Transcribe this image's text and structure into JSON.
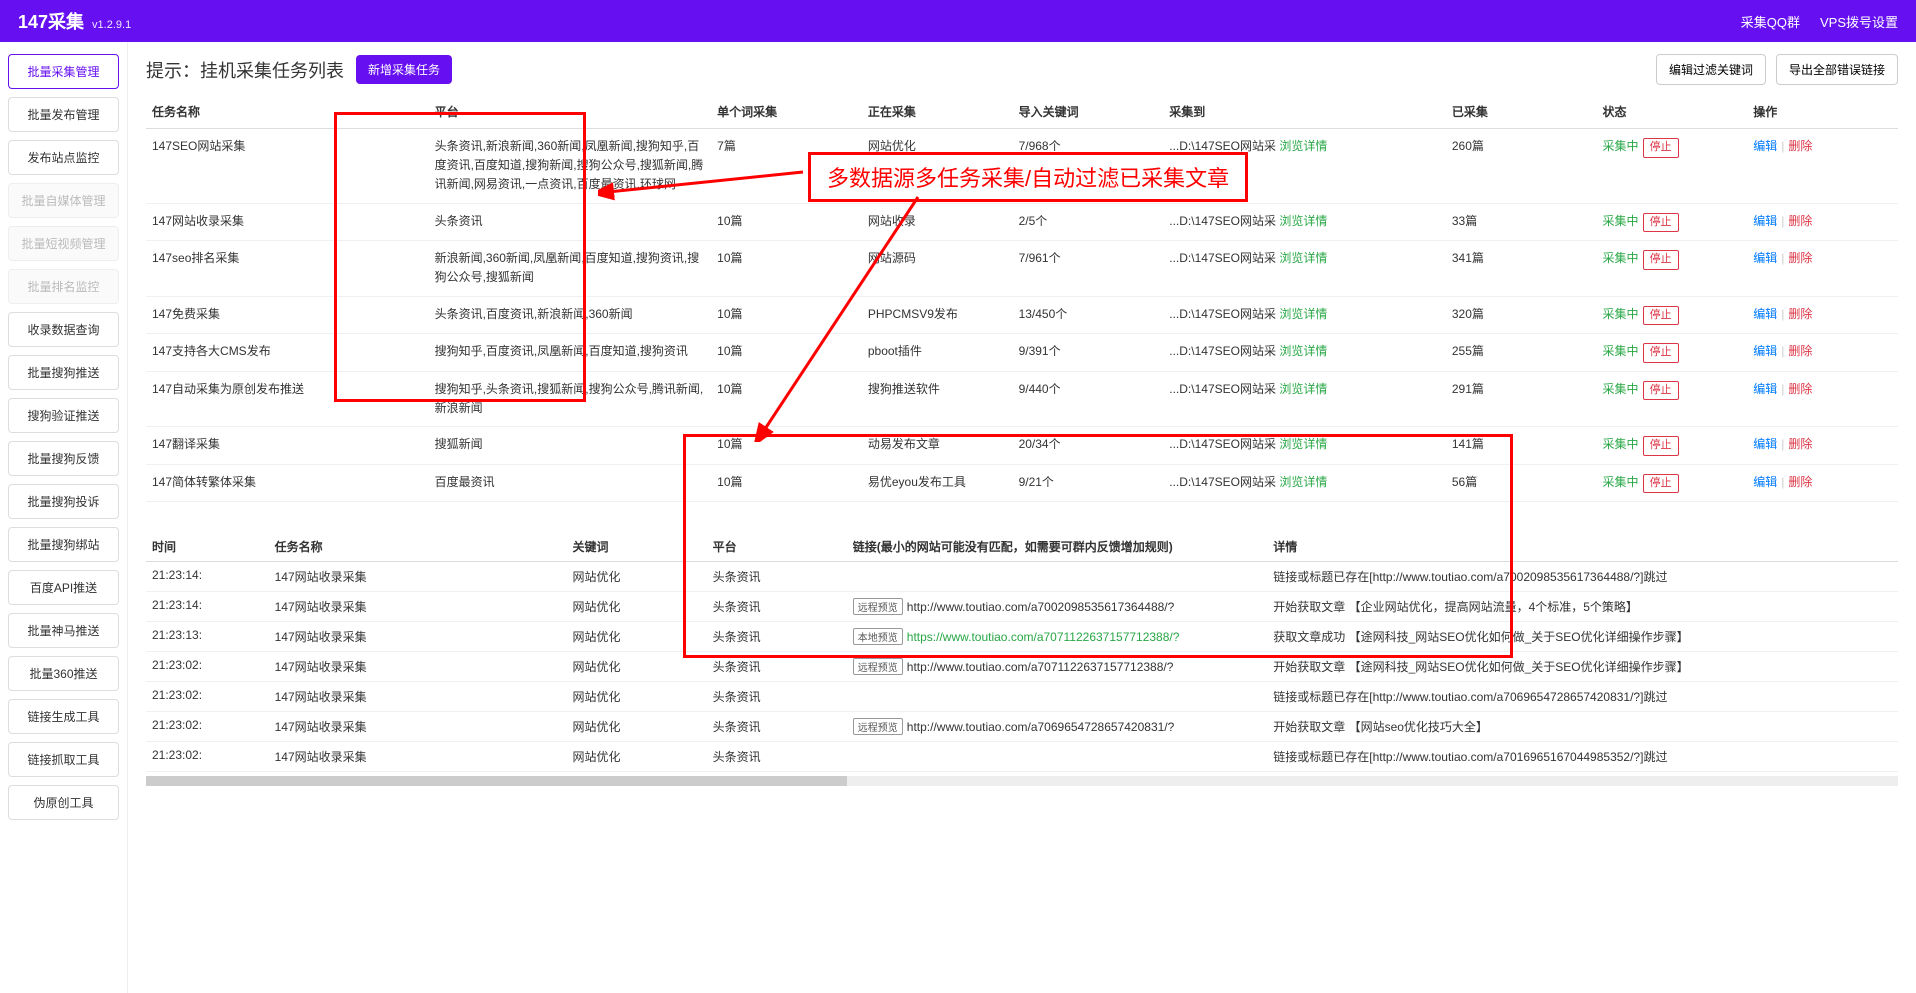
{
  "header": {
    "title": "147采集",
    "version": "v1.2.9.1",
    "links": [
      "采集QQ群",
      "VPS拨号设置"
    ]
  },
  "sidebar": {
    "items": [
      {
        "label": "批量采集管理",
        "state": "active"
      },
      {
        "label": "批量发布管理",
        "state": ""
      },
      {
        "label": "发布站点监控",
        "state": ""
      },
      {
        "label": "批量自媒体管理",
        "state": "disabled"
      },
      {
        "label": "批量短视频管理",
        "state": "disabled"
      },
      {
        "label": "批量排名监控",
        "state": "disabled"
      },
      {
        "label": "收录数据查询",
        "state": ""
      },
      {
        "label": "批量搜狗推送",
        "state": ""
      },
      {
        "label": "搜狗验证推送",
        "state": ""
      },
      {
        "label": "批量搜狗反馈",
        "state": ""
      },
      {
        "label": "批量搜狗投诉",
        "state": ""
      },
      {
        "label": "批量搜狗绑站",
        "state": ""
      },
      {
        "label": "百度API推送",
        "state": ""
      },
      {
        "label": "批量神马推送",
        "state": ""
      },
      {
        "label": "批量360推送",
        "state": ""
      },
      {
        "label": "链接生成工具",
        "state": ""
      },
      {
        "label": "链接抓取工具",
        "state": ""
      },
      {
        "label": "伪原创工具",
        "state": ""
      }
    ]
  },
  "main": {
    "title": "提示：挂机采集任务列表",
    "newTaskBtn": "新增采集任务",
    "rightButtons": [
      "编辑过滤关键词",
      "导出全部错误链接"
    ]
  },
  "tasksTable": {
    "headers": [
      "任务名称",
      "平台",
      "单个词采集",
      "正在采集",
      "导入关键词",
      "采集到",
      "已采集",
      "状态",
      "操作"
    ],
    "detailLink": "浏览详情",
    "statusText": "采集中",
    "stopBtn": "停止",
    "editLink": "编辑",
    "deleteLink": "删除",
    "targetPrefix": "...D:\\147SEO网站采",
    "rows": [
      {
        "name": "147SEO网站采集",
        "platform": "头条资讯,新浪新闻,360新闻,凤凰新闻,搜狗知乎,百度资讯,百度知道,搜狗新闻,搜狗公众号,搜狐新闻,腾讯新闻,网易资讯,一点资讯,百度最资讯,环球网",
        "single": "7篇",
        "collecting": "网站优化",
        "keywords": "7/968个",
        "collected": "260篇"
      },
      {
        "name": "147网站收录采集",
        "platform": "头条资讯",
        "single": "10篇",
        "collecting": "网站收录",
        "keywords": "2/5个",
        "collected": "33篇"
      },
      {
        "name": "147seo排名采集",
        "platform": "新浪新闻,360新闻,凤凰新闻,百度知道,搜狗资讯,搜狗公众号,搜狐新闻",
        "single": "10篇",
        "collecting": "网站源码",
        "keywords": "7/961个",
        "collected": "341篇"
      },
      {
        "name": "147免费采集",
        "platform": "头条资讯,百度资讯,新浪新闻,360新闻",
        "single": "10篇",
        "collecting": "PHPCMSV9发布",
        "keywords": "13/450个",
        "collected": "320篇"
      },
      {
        "name": "147支持各大CMS发布",
        "platform": "搜狗知乎,百度资讯,凤凰新闻,百度知道,搜狗资讯",
        "single": "10篇",
        "collecting": "pboot插件",
        "keywords": "9/391个",
        "collected": "255篇"
      },
      {
        "name": "147自动采集为原创发布推送",
        "platform": "搜狗知乎,头条资讯,搜狐新闻,搜狗公众号,腾讯新闻,新浪新闻",
        "single": "10篇",
        "collecting": "搜狗推送软件",
        "keywords": "9/440个",
        "collected": "291篇"
      },
      {
        "name": "147翻译采集",
        "platform": "搜狐新闻",
        "single": "10篇",
        "collecting": "动易发布文章",
        "keywords": "20/34个",
        "collected": "141篇"
      },
      {
        "name": "147简体转繁体采集",
        "platform": "百度最资讯",
        "single": "10篇",
        "collecting": "易优eyou发布工具",
        "keywords": "9/21个",
        "collected": "56篇"
      }
    ]
  },
  "logTable": {
    "headers": [
      "时间",
      "任务名称",
      "关键词",
      "平台",
      "链接(最小的网站可能没有匹配，如需要可群内反馈增加规则)",
      "详情"
    ],
    "rows": [
      {
        "time": "21:23:14:",
        "task": "147网站收录采集",
        "kw": "网站优化",
        "plat": "头条资讯",
        "linkType": "",
        "url": "",
        "detail": "链接或标题已存在[http://www.toutiao.com/a7002098535617364488/?]跳过"
      },
      {
        "time": "21:23:14:",
        "task": "147网站收录采集",
        "kw": "网站优化",
        "plat": "头条资讯",
        "linkType": "远程预览",
        "url": "http://www.toutiao.com/a7002098535617364488/?",
        "detail": "开始获取文章 【企业网站优化，提高网站流量，4个标准，5个策略】"
      },
      {
        "time": "21:23:13:",
        "task": "147网站收录采集",
        "kw": "网站优化",
        "plat": "头条资讯",
        "linkType": "本地预览",
        "url": "https://www.toutiao.com/a7071122637157712388/?",
        "urlGreen": true,
        "detail": "获取文章成功 【途网科技_网站SEO优化如何做_关于SEO优化详细操作步骤】"
      },
      {
        "time": "21:23:02:",
        "task": "147网站收录采集",
        "kw": "网站优化",
        "plat": "头条资讯",
        "linkType": "远程预览",
        "url": "http://www.toutiao.com/a7071122637157712388/?",
        "detail": "开始获取文章 【途网科技_网站SEO优化如何做_关于SEO优化详细操作步骤】"
      },
      {
        "time": "21:23:02:",
        "task": "147网站收录采集",
        "kw": "网站优化",
        "plat": "头条资讯",
        "linkType": "",
        "url": "",
        "detail": "链接或标题已存在[http://www.toutiao.com/a7069654728657420831/?]跳过"
      },
      {
        "time": "21:23:02:",
        "task": "147网站收录采集",
        "kw": "网站优化",
        "plat": "头条资讯",
        "linkType": "远程预览",
        "url": "http://www.toutiao.com/a7069654728657420831/?",
        "detail": "开始获取文章 【网站seo优化技巧大全】"
      },
      {
        "time": "21:23:02:",
        "task": "147网站收录采集",
        "kw": "网站优化",
        "plat": "头条资讯",
        "linkType": "",
        "url": "",
        "detail": "链接或标题已存在[http://www.toutiao.com/a7016965167044985352/?]跳过"
      }
    ]
  },
  "annotation": {
    "text": "多数据源多任务采集/自动过滤已采集文章",
    "colors": {
      "border": "#ff0000",
      "text": "#ff0000"
    }
  }
}
